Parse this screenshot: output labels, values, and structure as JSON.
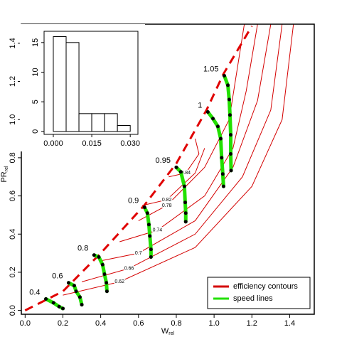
{
  "chart_data": [
    {
      "type": "compressor-map",
      "xlabel": {
        "main": "W",
        "sub": "rel"
      },
      "ylabel": {
        "main": "PR",
        "sub": "rel"
      },
      "xlim": [
        -0.02,
        1.53
      ],
      "ylim": [
        -0.02,
        1.5
      ],
      "xticks": [
        {
          "value": 0,
          "label": "0.0"
        },
        {
          "value": 0.2,
          "label": "0.2"
        },
        {
          "value": 0.4,
          "label": "0.4"
        },
        {
          "value": 0.6,
          "label": "0.6"
        },
        {
          "value": 0.8,
          "label": "0.8"
        },
        {
          "value": 1,
          "label": "1.0"
        },
        {
          "value": 1.2,
          "label": "1.2"
        },
        {
          "value": 1.4,
          "label": "1.4"
        }
      ],
      "yticks": [
        {
          "value": 0,
          "label": "0.0"
        },
        {
          "value": 0.2,
          "label": "0.2"
        },
        {
          "value": 0.4,
          "label": "0.4"
        },
        {
          "value": 0.6,
          "label": "0.6"
        },
        {
          "value": 0.8,
          "label": "0.8"
        },
        {
          "value": 1,
          "label": "1.0"
        },
        {
          "value": 1.2,
          "label": "1.2"
        },
        {
          "value": 1.4,
          "label": "1.4"
        }
      ],
      "legend": "bottom-right",
      "contours": {
        "name": "efficiency contours",
        "color": "#d40000",
        "lines": [
          {
            "label": "0.62",
            "x": [
              0.2,
              0.5,
              0.9,
              1.2,
              1.36,
              1.42
            ],
            "y": [
              0.08,
              0.15,
              0.33,
              0.65,
              1.0,
              1.5
            ]
          },
          {
            "label": "0.66",
            "x": [
              0.3,
              0.55,
              0.9,
              1.15,
              1.3,
              1.36
            ],
            "y": [
              0.15,
              0.22,
              0.4,
              0.7,
              1.05,
              1.5
            ]
          },
          {
            "label": "0.7",
            "x": [
              0.4,
              0.6,
              0.9,
              1.1,
              1.23,
              1.3
            ],
            "y": [
              0.26,
              0.3,
              0.47,
              0.75,
              1.1,
              1.5
            ]
          },
          {
            "label": "0.74",
            "x": [
              0.5,
              0.7,
              0.95,
              1.1,
              1.17,
              1.23
            ],
            "y": [
              0.36,
              0.42,
              0.6,
              0.85,
              1.15,
              1.5
            ]
          },
          {
            "label": "0.78",
            "x": [
              0.6,
              0.75,
              0.95,
              1.08,
              1.12,
              1.16
            ],
            "y": [
              0.47,
              0.55,
              0.75,
              1.0,
              1.25,
              1.5
            ]
          },
          {
            "label": "0.82",
            "x": [
              0.62,
              0.75,
              0.9,
              0.95
            ],
            "y": [
              0.55,
              0.58,
              0.72,
              0.85
            ]
          },
          {
            "label": "0.84",
            "x": [
              0.76,
              0.85,
              0.92,
              0.9
            ],
            "y": [
              0.7,
              0.72,
              0.82,
              0.9
            ]
          }
        ]
      },
      "surge_line": {
        "color": "#e00000",
        "x": [
          0,
          0.2,
          0.4,
          0.63,
          0.8,
          0.96,
          1.05,
          1.2
        ],
        "y": [
          0,
          0.1,
          0.3,
          0.55,
          0.77,
          1.05,
          1.24,
          1.49
        ]
      },
      "speed_lines": {
        "name": "speed lines",
        "color": "#22e000",
        "lines": [
          {
            "label": "0.4",
            "x": [
              0.11,
              0.15,
              0.18,
              0.2
            ],
            "y": [
              0.06,
              0.04,
              0.02,
              0.01
            ]
          },
          {
            "label": "0.6",
            "x": [
              0.23,
              0.26,
              0.27,
              0.29,
              0.3
            ],
            "y": [
              0.145,
              0.13,
              0.1,
              0.07,
              0.03
            ]
          },
          {
            "label": "0.8",
            "x": [
              0.365,
              0.39,
              0.41,
              0.42,
              0.43,
              0.433
            ],
            "y": [
              0.29,
              0.28,
              0.24,
              0.19,
              0.145,
              0.1
            ]
          },
          {
            "label": "0.9",
            "x": [
              0.632,
              0.647,
              0.655,
              0.66,
              0.666,
              0.666
            ],
            "y": [
              0.54,
              0.51,
              0.45,
              0.39,
              0.32,
              0.28
            ]
          },
          {
            "label": "0.95",
            "x": [
              0.8,
              0.824,
              0.843,
              0.847,
              0.85,
              0.85
            ],
            "y": [
              0.75,
              0.726,
              0.65,
              0.566,
              0.51,
              0.465
            ]
          },
          {
            "label": "1",
            "x": [
              0.967,
              0.994,
              1.02,
              1.035,
              1.04,
              1.046,
              1.05
            ],
            "y": [
              1.04,
              1.005,
              0.964,
              0.9,
              0.8,
              0.715,
              0.65
            ]
          },
          {
            "label": "1.05",
            "x": [
              1.054,
              1.073,
              1.08,
              1.084,
              1.088,
              1.088,
              1.09
            ],
            "y": [
              1.23,
              1.18,
              1.105,
              1.024,
              0.92,
              0.82,
              0.733
            ]
          }
        ]
      }
    },
    {
      "type": "histogram",
      "bins": [
        0,
        0.005,
        0.01,
        0.015,
        0.02,
        0.025,
        0.03
      ],
      "values": [
        16,
        15,
        3,
        3,
        3,
        1
      ],
      "xlim": [
        -0.0036,
        0.033
      ],
      "ylim": [
        -0.5,
        16.9
      ],
      "xticks": [
        {
          "value": 0,
          "label": "0.000"
        },
        {
          "value": 0.015,
          "label": "0.015"
        },
        {
          "value": 0.03,
          "label": "0.030"
        }
      ],
      "yticks": [
        0,
        5,
        10,
        15
      ]
    }
  ]
}
